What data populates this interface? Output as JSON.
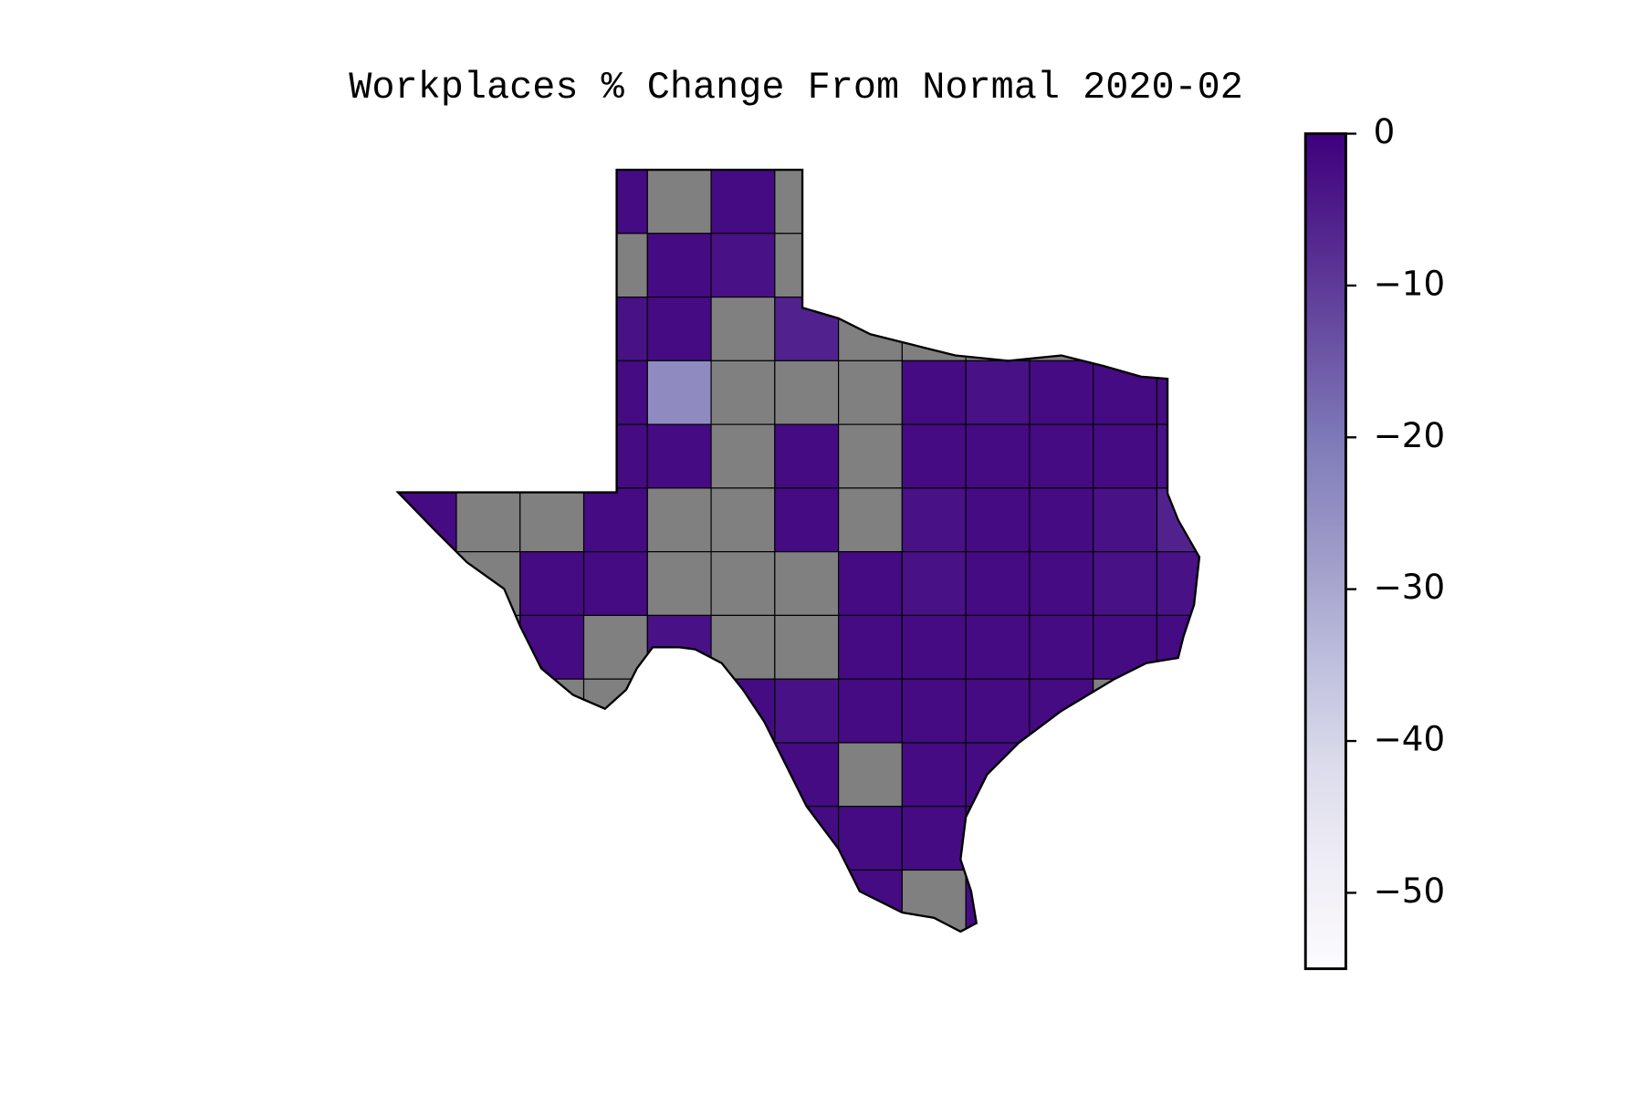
{
  "title": "Workplaces % Change From Normal 2020-02",
  "map": {
    "cell_values": [
      [
        null,
        null,
        null,
        -2,
        null,
        -2,
        null,
        null,
        null,
        null,
        null,
        null,
        null
      ],
      [
        null,
        null,
        null,
        null,
        -2,
        -3,
        null,
        null,
        null,
        null,
        null,
        null,
        null
      ],
      [
        null,
        null,
        null,
        -3,
        -2,
        null,
        -6,
        null,
        null,
        null,
        null,
        null,
        null
      ],
      [
        null,
        null,
        null,
        -2,
        -24,
        null,
        null,
        null,
        -2,
        -3,
        -2,
        -2,
        -2
      ],
      [
        null,
        null,
        null,
        -2,
        -2,
        null,
        -2,
        null,
        -2,
        -2,
        -2,
        -2,
        -3
      ],
      [
        -2,
        null,
        null,
        -2,
        null,
        null,
        -2,
        null,
        -3,
        -2,
        -2,
        -3,
        -6
      ],
      [
        null,
        null,
        -2,
        -2,
        null,
        null,
        null,
        -2,
        -3,
        -2,
        -2,
        -3,
        -3
      ],
      [
        null,
        null,
        -2,
        null,
        -3,
        null,
        null,
        -2,
        -2,
        -2,
        -2,
        -2,
        -2
      ],
      [
        null,
        null,
        null,
        null,
        null,
        -2,
        -3,
        -2,
        -2,
        -2,
        -2,
        null,
        null
      ],
      [
        null,
        null,
        null,
        null,
        null,
        null,
        -2,
        null,
        -2,
        -2,
        null,
        null,
        null
      ],
      [
        null,
        null,
        null,
        null,
        null,
        null,
        -2,
        -2,
        -2,
        -2,
        null,
        null,
        null
      ],
      [
        null,
        null,
        null,
        null,
        null,
        null,
        null,
        -2,
        null,
        -2,
        null,
        null,
        null
      ]
    ],
    "missing_color": "#808080"
  },
  "colorbar": {
    "colormap": "Purples",
    "lim": [
      -55,
      0
    ],
    "ticks": [
      0,
      {
        "value": -10,
        "label": "−10"
      },
      {
        "value": -20,
        "label": "−20"
      },
      {
        "value": -30,
        "label": "−30"
      },
      {
        "value": -40,
        "label": "−40"
      },
      {
        "value": -50,
        "label": "−50"
      }
    ]
  }
}
